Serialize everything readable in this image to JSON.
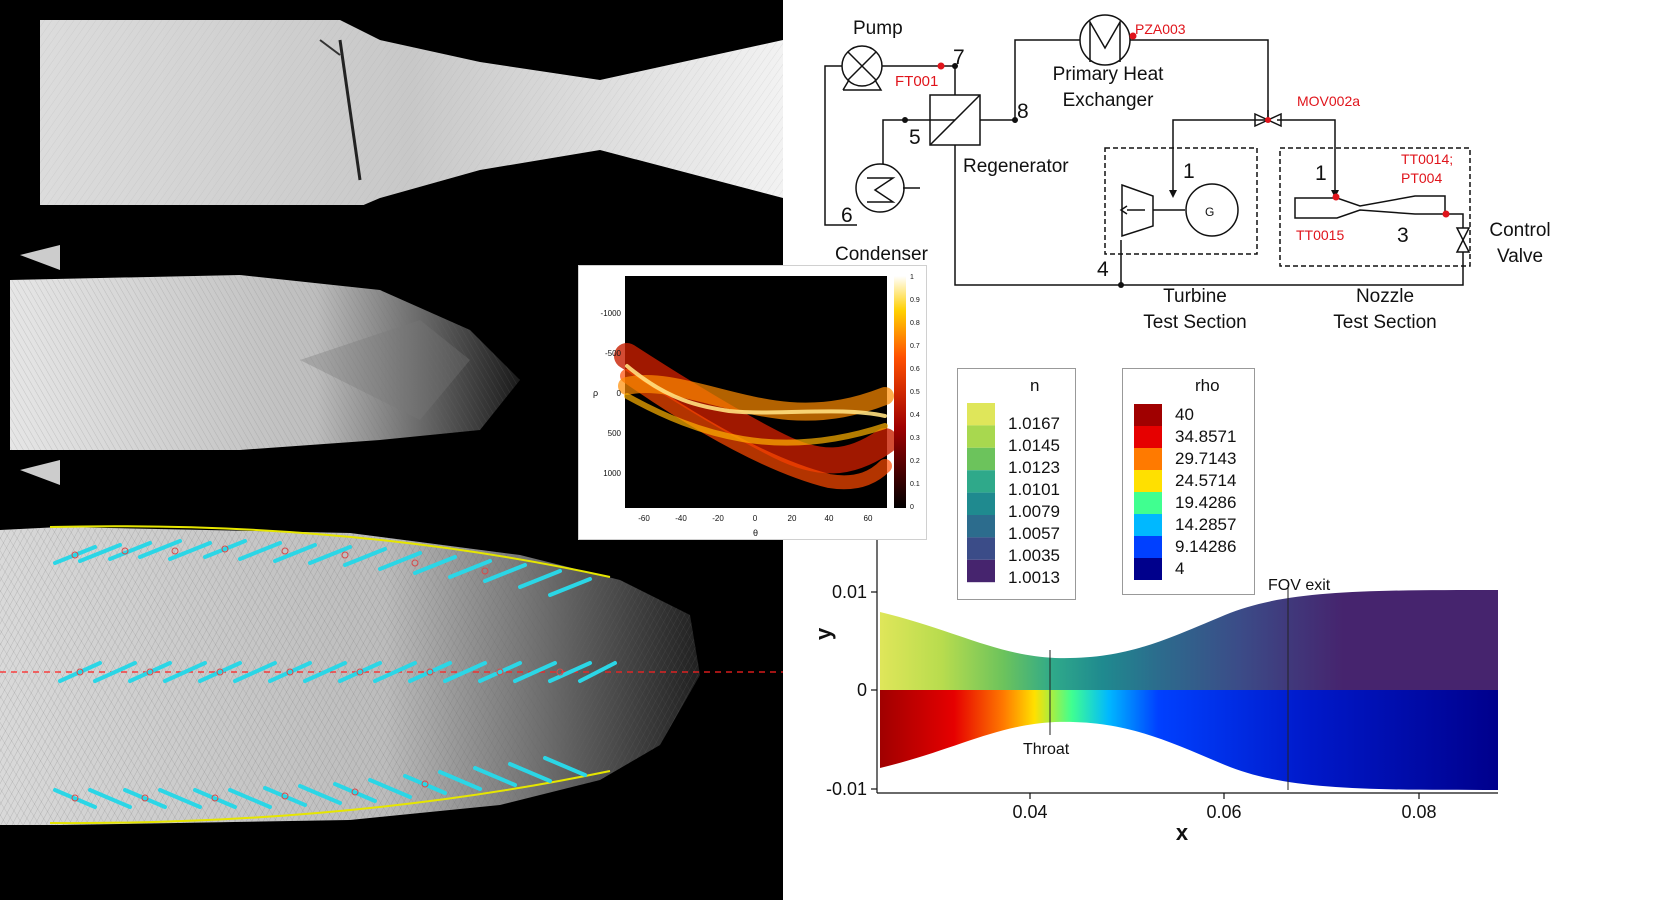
{
  "figure_type": "composite research figure",
  "schematic": {
    "components": {
      "pump": "Pump",
      "primary_heat_exchanger": "Primary Heat\nExchanger",
      "regenerator": "Regenerator",
      "condenser": "Condenser",
      "turbine_section": "Turbine\nTest Section",
      "nozzle_section": "Nozzle\nTest Section",
      "control_valve": "Control\nValve",
      "generator": "G"
    },
    "state_points": [
      "7",
      "8",
      "5",
      "6",
      "1",
      "1",
      "3",
      "4"
    ],
    "sensors": {
      "ft": "FT001",
      "pza": "PZA003",
      "mov": "MOV002a",
      "tt15": "TT0015",
      "tt14": "TT0014;\nPT004"
    },
    "colors": {
      "sensor": "#e0141b",
      "line": "#111111"
    }
  },
  "hough_plot": {
    "xlabel": "θ",
    "ylabel": "ρ",
    "x_ticks": [
      "-60",
      "-40",
      "-20",
      "0",
      "20",
      "40",
      "60"
    ],
    "y_ticks": [
      "-1000",
      "-500",
      "0",
      "500",
      "1000"
    ],
    "colorbar_ticks": [
      "0",
      "0.1",
      "0.2",
      "0.3",
      "0.4",
      "0.5",
      "0.6",
      "0.7",
      "0.8",
      "0.9",
      "1"
    ]
  },
  "legend_n": {
    "title": "n",
    "levels": [
      "1.0167",
      "1.0145",
      "1.0123",
      "1.0101",
      "1.0079",
      "1.0057",
      "1.0035",
      "1.0013"
    ],
    "colors": [
      "#dfe65a",
      "#a8d84f",
      "#6cc35c",
      "#2fa98a",
      "#1f8a8f",
      "#2c6c8d",
      "#3b4c88",
      "#46246e"
    ]
  },
  "legend_rho": {
    "title": "rho",
    "levels": [
      "40",
      "34.8571",
      "29.7143",
      "24.5714",
      "19.4286",
      "14.2857",
      "9.14286",
      "4"
    ],
    "colors": [
      "#a00000",
      "#e60000",
      "#ff7a00",
      "#ffe000",
      "#40ff90",
      "#00b8ff",
      "#0040ff",
      "#00008c"
    ]
  },
  "nozzle_plot": {
    "xlabel": "x",
    "ylabel": "y",
    "x_ticks": [
      "0.04",
      "0.06",
      "0.08"
    ],
    "y_ticks": [
      "0.01",
      "0",
      "-0.01"
    ],
    "annotations": {
      "throat": "Throat",
      "fov_exit": "FOV exit"
    }
  }
}
